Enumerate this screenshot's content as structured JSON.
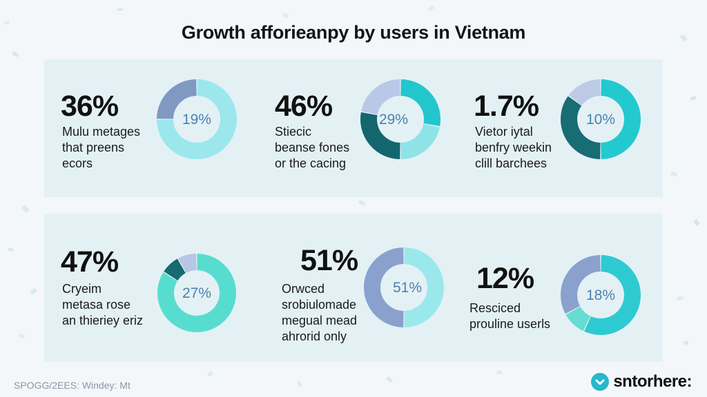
{
  "title": "Growth afforieanpy by users in Vietnam",
  "chart_data": {
    "type": "pie",
    "title": "Growth afforieanpy by users in Vietnam",
    "cards": [
      {
        "stat": "36%",
        "lines": [
          "Mulu metages",
          "that preens",
          "ecors"
        ],
        "donut_label": "19%",
        "segments": [
          {
            "value": 60,
            "color": "#9be7ec"
          },
          {
            "value": 20,
            "color": "#7f99c2"
          }
        ]
      },
      {
        "stat": "46%",
        "lines": [
          "Stiecic",
          "beanse fones",
          "or the cacing"
        ],
        "donut_label": "29%",
        "segments": [
          {
            "value": 28,
            "color": "#22c6cc"
          },
          {
            "value": 22,
            "color": "#8ee3e7"
          },
          {
            "value": 28,
            "color": "#14666e"
          },
          {
            "value": 22,
            "color": "#b9c8e6"
          }
        ]
      },
      {
        "stat": "1.7%",
        "lines": [
          "Vietor iytal",
          "benfry weekin",
          "clill barchees"
        ],
        "donut_label": "10%",
        "segments": [
          {
            "value": 50,
            "color": "#22c9cf"
          },
          {
            "value": 35,
            "color": "#186c74"
          },
          {
            "value": 15,
            "color": "#bccae6"
          }
        ]
      },
      {
        "stat": "47%",
        "lines": [
          "Cryeim",
          "metasa rose",
          "an thieriey eriz"
        ],
        "donut_label": "27%",
        "segments": [
          {
            "value": 84,
            "color": "#57ddcf"
          },
          {
            "value": 8,
            "color": "#156b70"
          },
          {
            "value": 8,
            "color": "#b7c5e6"
          }
        ]
      },
      {
        "stat": "51%",
        "lines": [
          "Orwced",
          "srobiulomade",
          "megual mead",
          "ahrorid only"
        ],
        "donut_label": "51%",
        "segments": [
          {
            "value": 50,
            "color": "#9be8ec"
          },
          {
            "value": 50,
            "color": "#8aa1cd"
          }
        ]
      },
      {
        "stat": "12%",
        "lines": [
          "Resciced",
          "prouline userls"
        ],
        "donut_label": "18%",
        "segments": [
          {
            "value": 57,
            "color": "#2ecad2"
          },
          {
            "value": 10,
            "color": "#66ddd3"
          },
          {
            "value": 33,
            "color": "#8aa1cd"
          }
        ]
      }
    ]
  },
  "footer": {
    "source": "SPOGG/2EES: Windey: Mt",
    "brand": "sntorhere:"
  },
  "colors": {
    "label_text": "#4e7fb0",
    "panel": "#e3f1f5",
    "brand_icon": "#25b9c9"
  }
}
